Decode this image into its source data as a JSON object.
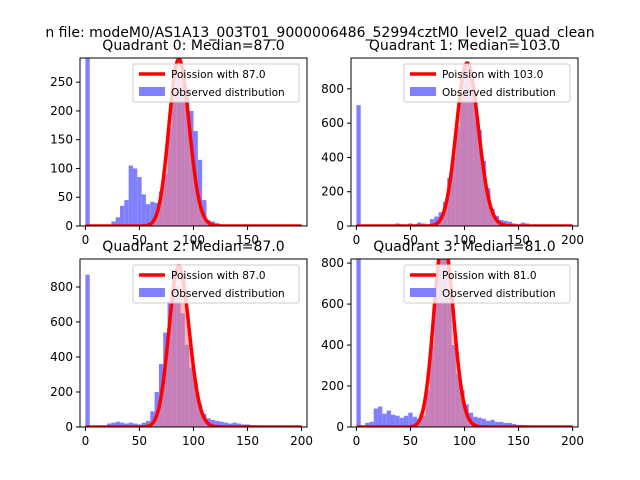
{
  "suptitle": "n file: modeM0/AS1A13_003T01_9000006486_52994cztM0_level2_quad_clean",
  "colors": {
    "hist": "#8080ff",
    "fit": "#ff0000",
    "fit_fill": "#ff8080"
  },
  "chart_data": [
    {
      "type": "bar",
      "title": "Quadrant 0: Median=87.0",
      "xlim": [
        -5,
        205
      ],
      "ylim": [
        0,
        292
      ],
      "xticks": [
        0,
        50,
        100,
        150
      ],
      "yticks": [
        0,
        50,
        100,
        150,
        200,
        250
      ],
      "legend": [
        "Poission with 87.0",
        "Observed distribution"
      ],
      "legend_loc": "upper-right",
      "poisson_mean": 87.0,
      "poisson_scale": 290,
      "bin_width": 4,
      "bin_start": [
        0,
        4,
        8,
        12,
        16,
        20,
        24,
        28,
        32,
        36,
        40,
        44,
        48,
        52,
        56,
        60,
        64,
        68,
        72,
        76,
        80,
        84,
        88,
        92,
        96,
        100,
        104,
        108,
        112,
        116,
        120,
        124
      ],
      "counts": [
        292,
        0,
        0,
        0,
        0,
        0,
        8,
        15,
        35,
        45,
        105,
        100,
        85,
        55,
        38,
        42,
        40,
        60,
        90,
        170,
        240,
        260,
        255,
        240,
        200,
        165,
        115,
        45,
        10,
        8,
        5,
        0
      ]
    },
    {
      "type": "bar",
      "title": "Quadrant 1: Median=103.0",
      "xlim": [
        -5,
        205
      ],
      "ylim": [
        0,
        980
      ],
      "xticks": [
        0,
        50,
        100,
        150,
        200
      ],
      "yticks": [
        0,
        200,
        400,
        600,
        800
      ],
      "legend": [
        "Poission with 103.0",
        "Observed distribution"
      ],
      "legend_loc": "upper-right",
      "poisson_mean": 103.0,
      "poisson_scale": 950,
      "bin_width": 4,
      "bin_start": [
        0,
        4,
        36,
        40,
        48,
        56,
        60,
        68,
        72,
        76,
        80,
        84,
        88,
        92,
        96,
        100,
        104,
        108,
        112,
        116,
        120,
        124,
        128,
        132,
        136,
        140,
        144,
        148,
        152,
        156,
        160,
        164,
        168,
        172,
        176,
        180,
        184,
        188,
        192
      ],
      "counts": [
        705,
        0,
        15,
        10,
        15,
        20,
        15,
        40,
        55,
        80,
        140,
        280,
        400,
        580,
        780,
        950,
        880,
        760,
        560,
        380,
        220,
        100,
        60,
        35,
        30,
        25,
        15,
        10,
        20,
        15,
        8,
        10,
        8,
        10,
        8,
        5,
        5,
        8,
        5
      ]
    },
    {
      "type": "bar",
      "title": "Quadrant 2: Median=87.0",
      "xlim": [
        -5,
        205
      ],
      "ylim": [
        0,
        960
      ],
      "xticks": [
        0,
        50,
        100,
        150,
        200
      ],
      "yticks": [
        0,
        200,
        400,
        600,
        800
      ],
      "legend": [
        "Poission with 87.0",
        "Observed distribution"
      ],
      "legend_loc": "upper-right",
      "poisson_mean": 87.0,
      "poisson_scale": 920,
      "bin_width": 4,
      "bin_start": [
        0,
        4,
        20,
        24,
        28,
        32,
        36,
        40,
        44,
        48,
        52,
        56,
        60,
        64,
        68,
        72,
        76,
        80,
        84,
        88,
        92,
        96,
        100,
        104,
        108,
        112,
        116,
        120,
        124,
        128,
        132,
        136,
        140,
        144,
        148,
        152,
        156,
        160,
        164,
        168,
        172,
        176,
        180,
        184,
        188,
        192
      ],
      "counts": [
        870,
        0,
        20,
        25,
        30,
        25,
        20,
        25,
        20,
        15,
        25,
        35,
        90,
        200,
        360,
        540,
        720,
        900,
        800,
        650,
        470,
        340,
        250,
        130,
        75,
        50,
        40,
        35,
        30,
        25,
        20,
        25,
        20,
        15,
        15,
        10,
        10,
        8,
        8,
        8,
        5,
        5,
        5,
        5,
        5,
        3
      ]
    },
    {
      "type": "bar",
      "title": "Quadrant 3: Median=81.0",
      "xlim": [
        -5,
        205
      ],
      "ylim": [
        0,
        820
      ],
      "xticks": [
        0,
        50,
        100,
        150,
        200
      ],
      "yticks": [
        0,
        200,
        400,
        600,
        800
      ],
      "legend": [
        "Poission with 81.0",
        "Observed distribution"
      ],
      "legend_loc": "upper-right",
      "poisson_mean": 81.0,
      "poisson_scale": 920,
      "bin_width": 4,
      "bin_start": [
        0,
        4,
        8,
        12,
        16,
        20,
        24,
        28,
        32,
        36,
        40,
        44,
        48,
        52,
        56,
        60,
        64,
        68,
        72,
        76,
        80,
        84,
        88,
        92,
        96,
        100,
        104,
        108,
        112,
        116,
        120,
        124,
        128,
        132,
        136,
        140,
        144,
        148,
        152,
        156,
        160,
        164,
        168,
        172,
        176,
        180,
        184,
        188,
        192
      ],
      "counts": [
        820,
        0,
        20,
        25,
        90,
        100,
        65,
        80,
        60,
        55,
        45,
        55,
        70,
        50,
        40,
        55,
        180,
        400,
        650,
        820,
        900,
        650,
        400,
        260,
        180,
        110,
        70,
        50,
        45,
        40,
        30,
        35,
        25,
        25,
        20,
        20,
        15,
        10,
        10,
        8,
        8,
        5,
        5,
        5,
        5,
        5,
        5,
        5,
        3
      ]
    }
  ]
}
